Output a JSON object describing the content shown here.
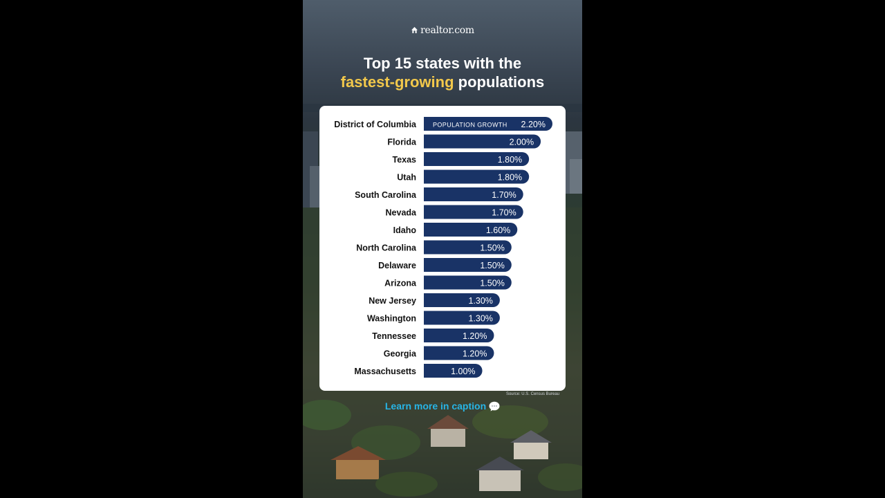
{
  "brand": {
    "logo_text": "realtor.com"
  },
  "headline": {
    "line1": "Top 15 states with the",
    "line2_highlight": "fastest-growing",
    "line2_rest": " populations"
  },
  "source": "Source: U.S. Census Bureau",
  "cta": {
    "text": "Learn more in caption",
    "icon": "speech-bubble-icon"
  },
  "colors": {
    "bar": "#193366",
    "highlight": "#f2c84b",
    "cta": "#27b5e6"
  },
  "chart_data": {
    "type": "bar",
    "orientation": "horizontal",
    "title": "Top 15 states with the fastest-growing populations",
    "series": [
      {
        "name": "POPULATION GROWTH",
        "values": [
          2.2,
          2.0,
          1.8,
          1.8,
          1.7,
          1.7,
          1.6,
          1.5,
          1.5,
          1.5,
          1.3,
          1.3,
          1.2,
          1.2,
          1.0
        ]
      }
    ],
    "categories": [
      "District of Columbia",
      "Florida",
      "Texas",
      "Utah",
      "South Carolina",
      "Nevada",
      "Idaho",
      "North Carolina",
      "Delaware",
      "Arizona",
      "New Jersey",
      "Washington",
      "Tennessee",
      "Georgia",
      "Massachusetts"
    ],
    "value_labels": [
      "2.20%",
      "2.00%",
      "1.80%",
      "1.80%",
      "1.70%",
      "1.70%",
      "1.60%",
      "1.50%",
      "1.50%",
      "1.50%",
      "1.30%",
      "1.30%",
      "1.20%",
      "1.20%",
      "1.00%"
    ],
    "xlim": [
      0,
      2.2
    ],
    "grid": false,
    "legend": "inside-first-bar"
  }
}
